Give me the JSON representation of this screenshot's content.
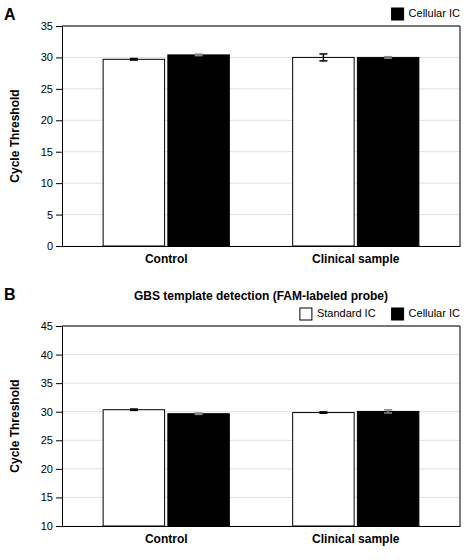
{
  "chart_data": [
    {
      "type": "bar",
      "panel_label": "A",
      "categories": [
        "Control",
        "Clinical sample"
      ],
      "series": [
        {
          "color": "#ffffff",
          "values": [
            29.7,
            30.0
          ],
          "errors": [
            0.12,
            0.55
          ]
        },
        {
          "name": "Cellular IC",
          "color": "#000000",
          "values": [
            30.4,
            30.0
          ],
          "errors": [
            0.12,
            0.12
          ]
        }
      ],
      "ylabel": "Cycle Threshold",
      "ylim": [
        0,
        35
      ],
      "yticks": [
        0,
        5,
        10,
        15,
        20,
        25,
        30,
        35
      ],
      "grid": true,
      "legend": "upper right"
    },
    {
      "type": "bar",
      "panel_label": "B",
      "title": "GBS template detection (FAM-labeled probe)",
      "categories": [
        "Control",
        "Clinical sample"
      ],
      "series": [
        {
          "name": "Standard IC",
          "color": "#ffffff",
          "values": [
            30.35,
            29.85
          ],
          "errors": [
            0.12,
            0.12
          ]
        },
        {
          "name": "Cellular IC",
          "color": "#000000",
          "values": [
            29.65,
            30.05
          ],
          "errors": [
            0.12,
            0.28
          ]
        }
      ],
      "ylabel": "Cycle Threshold",
      "ylim": [
        10,
        45
      ],
      "yticks": [
        10,
        15,
        20,
        25,
        30,
        35,
        40,
        45
      ],
      "grid": true,
      "legend": "upper right"
    }
  ]
}
